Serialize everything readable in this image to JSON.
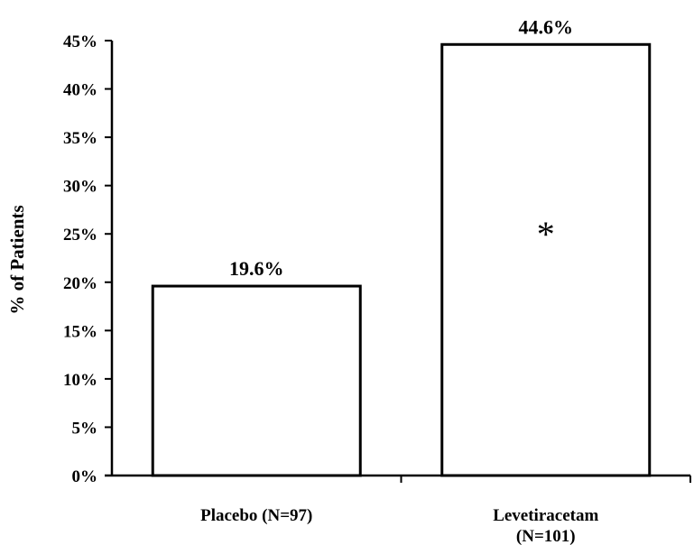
{
  "chart_data": {
    "type": "bar",
    "title": "",
    "xlabel": "",
    "ylabel": "% of Patients",
    "ylim": [
      0,
      45
    ],
    "yticks": [
      0,
      5,
      10,
      15,
      20,
      25,
      30,
      35,
      40,
      45
    ],
    "ytick_labels": [
      "0%",
      "5%",
      "10%",
      "15%",
      "20%",
      "25%",
      "30%",
      "35%",
      "40%",
      "45%"
    ],
    "grid": false,
    "legend": "none",
    "categories": [
      [
        "Placebo (N=97)"
      ],
      [
        "Levetiracetam",
        "(N=101)"
      ]
    ],
    "values": [
      19.6,
      44.6
    ],
    "data_labels": [
      "19.6%",
      "44.6%"
    ],
    "annotations": [
      {
        "category_index": 1,
        "text": "*"
      }
    ],
    "colors": {
      "bar_fill": "#ffffff",
      "bar_stroke": "#000000",
      "axis": "#000000"
    }
  }
}
